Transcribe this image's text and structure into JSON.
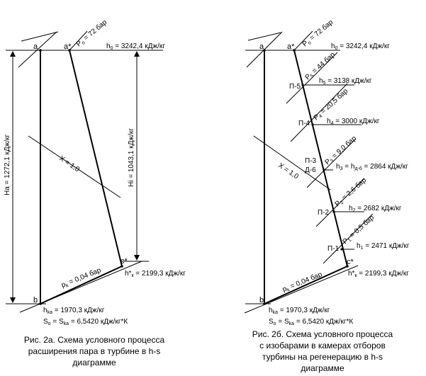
{
  "diagram_a": {
    "point_a": "a",
    "point_a_star": "a*",
    "point_b": "b",
    "point_c_star": "c*",
    "p0_label": "P",
    "p0_sub": "o",
    "p0_value": " = 72 бар",
    "h0_label": "h",
    "h0_sub": "0",
    "h0_value": " = 3242,4 кДж/кг",
    "x_label": "X = 1,0",
    "ha_label": "Ha = 1272,1 кДж/кг",
    "hi_label": "Hi = 1043,1 кДж/кг",
    "pk_label": "p",
    "pk_sub": "k",
    "pk_value": " = 0,04 бар",
    "hk_star_label": "h*",
    "hk_star_sub": "к",
    "hk_star_value": " = 2199,3 кДж/кг",
    "hka_label": "h",
    "hka_sub": "ka",
    "hka_value": " = 1970,3 кДж/кг",
    "s_line": "S",
    "s_sub0": "o",
    "s_mid": " = S",
    "s_subka": "ka",
    "s_value": " = 6,5420 кДж/кг*К",
    "caption": [
      "Рис. 2а. Схема условного процесса",
      "расширения пара в турбине в h-s",
      "диаграмме"
    ]
  },
  "diagram_b": {
    "point_a": "a",
    "point_a_star": "a*",
    "point_b": "b",
    "point_c_star": "c*",
    "p0_label": "P",
    "p0_sub": "o",
    "p0_value": " = 72 бар",
    "h0_label": "h",
    "h0_sub": "0",
    "h0_value": " = 3242,4 кДж/кг",
    "x_label": "X = 1,0",
    "pk_label": "p",
    "pk_sub": "k",
    "pk_value": " = 0,04 бар",
    "hk_star_label": "h*",
    "hk_star_sub": "к",
    "hk_star_value": " = 2199,3 кДж/кг",
    "hka_label": "h",
    "hka_sub": "ka",
    "hka_value": " = 1970,3 кДж/кг",
    "s_line": "S",
    "s_sub0": "o",
    "s_mid": " = S",
    "s_subka": "ka",
    "s_value": " = 6,5420 кДж/кг*К",
    "extractions": [
      {
        "name": "П-5",
        "p_label": "P",
        "p_sub": "5",
        "p_value": " = 44 бар",
        "h_label": "h",
        "h_sub": "5",
        "h_value": " = 3138 кДж/кг"
      },
      {
        "name": "П-4",
        "p_label": "P",
        "p_sub": "4",
        "p_value": " = 20,5 бар",
        "h_label": "h",
        "h_sub": "4",
        "h_value": " = 3000 кДж/кг"
      },
      {
        "name": "П-3",
        "name2": "Д-6",
        "p_label": "P",
        "p_sub": "3",
        "p_value": " = 9,0 бар",
        "h_label": "h",
        "h_sub": "3",
        "h_mid": " = h",
        "h_sub2": "д-6",
        "h_value": " = 2864 кДж/кг"
      },
      {
        "name": "П-2",
        "p_label": "P",
        "p_sub": "2",
        "p_value": " = 2,6 бар",
        "h_label": "h",
        "h_sub": "2",
        "h_value": " = 2682 кДж/кг"
      },
      {
        "name": "П-1",
        "p_label": "P",
        "p_sub": "1",
        "p_value": " = 0,5 бар",
        "h_label": "h",
        "h_sub": "1",
        "h_value": " = 2471 кДж/кг"
      }
    ],
    "caption": [
      "Рис. 2б. Схема условного процесса",
      "с изобарами в камерах отборов",
      "турбины на регенерацию в h-s",
      "диаграмме"
    ]
  }
}
